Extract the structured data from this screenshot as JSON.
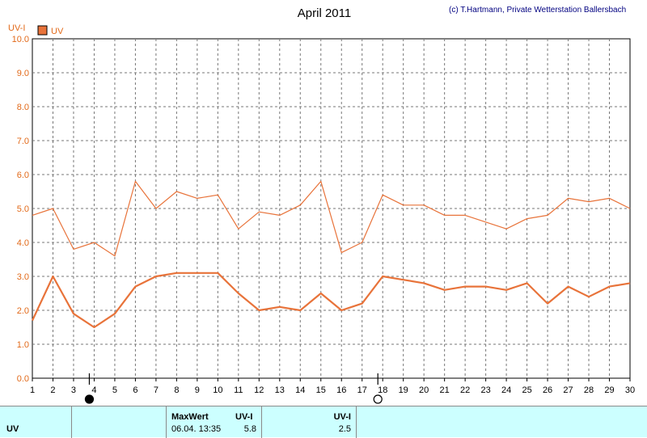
{
  "chart_data": {
    "type": "line",
    "title": "April 2011",
    "copyright": "(c) T.Hartmann, Private Wetterstation Ballersbach",
    "ylabel": "UV-I",
    "legend": "UV",
    "ylim": [
      0,
      10
    ],
    "yticks": [
      "0.0",
      "1.0",
      "2.0",
      "3.0",
      "4.0",
      "5.0",
      "6.0",
      "7.0",
      "8.0",
      "9.0",
      "10.0"
    ],
    "x": [
      1,
      2,
      3,
      4,
      5,
      6,
      7,
      8,
      9,
      10,
      11,
      12,
      13,
      14,
      15,
      16,
      17,
      18,
      19,
      20,
      21,
      22,
      23,
      24,
      25,
      26,
      27,
      28,
      29,
      30
    ],
    "series": [
      {
        "role": "max",
        "color": "#e8733a",
        "values": [
          4.8,
          5.0,
          3.8,
          4.0,
          3.6,
          5.8,
          5.0,
          5.5,
          5.3,
          5.4,
          4.4,
          4.9,
          4.8,
          5.1,
          5.8,
          3.7,
          4.0,
          5.4,
          5.1,
          5.1,
          4.8,
          4.8,
          4.6,
          4.4,
          4.7,
          4.8,
          5.3,
          5.2,
          5.3,
          5.0
        ]
      },
      {
        "role": "mean",
        "color": "#e8733a",
        "values": [
          1.7,
          3.0,
          1.9,
          1.5,
          1.9,
          2.7,
          3.0,
          3.1,
          3.1,
          3.1,
          2.5,
          2.0,
          2.1,
          2.0,
          2.5,
          2.0,
          2.2,
          3.0,
          2.9,
          2.8,
          2.6,
          2.7,
          2.7,
          2.6,
          2.8,
          2.2,
          2.7,
          2.4,
          2.7,
          2.8
        ]
      }
    ],
    "moon_markers": [
      {
        "day": 4,
        "phase": "new"
      },
      {
        "day": 18,
        "phase": "full"
      }
    ],
    "grid": true
  },
  "footer": {
    "series_name": "UV",
    "max_label": "MaxWert",
    "max_unit": "UV-I",
    "max_time": "06.04.  13:35",
    "max_value": "5.8",
    "avg_unit": "UV-I",
    "avg_value": "2.5"
  },
  "colors": {
    "line": "#e8733a",
    "text_orange": "#e26a1a",
    "footer_bg": "#ccffff"
  }
}
